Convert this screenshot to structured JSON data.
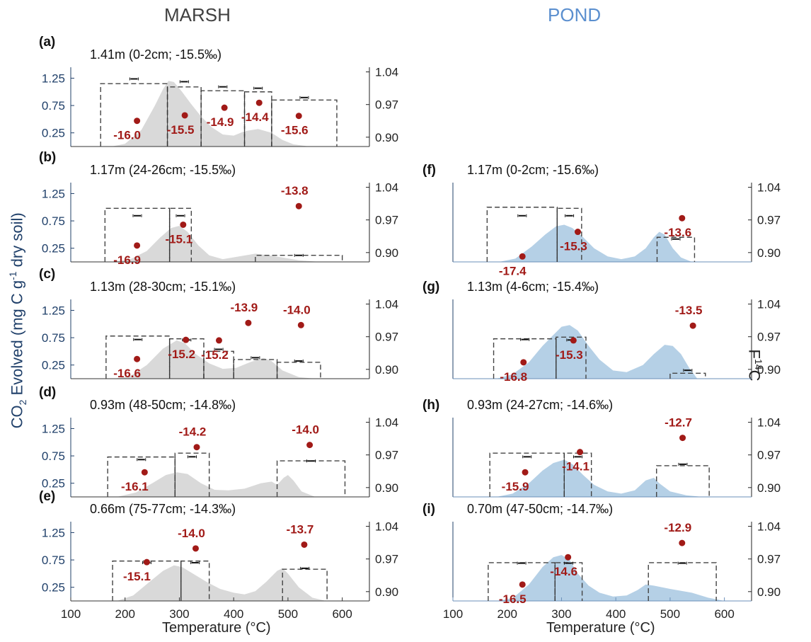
{
  "titles": {
    "marsh": "MARSH",
    "pond": "POND"
  },
  "axis": {
    "y_left_prefix": "CO",
    "y_left_sub": "2",
    "y_left_mid": " Evolved (mg C g",
    "y_left_sup": "-1",
    "y_left_suffix": " dry soil)",
    "y_right_base": "F",
    "y_right_sup": "14",
    "y_right_tail": "C",
    "xlabel": "Temperature (°C)"
  },
  "colors": {
    "marsh_fill": "#d9d9d9",
    "pond_fill": "#b5d0e6",
    "point": "#a11a17",
    "label": "#a11a17",
    "left_axis": "#20406a",
    "box": "#444444"
  },
  "chart_data": [
    {
      "type": "area",
      "panel": "(a)",
      "column": "marsh",
      "title": "1.41m (0-2cm; -15.5‰)",
      "xlim": [
        100,
        650
      ],
      "ylim_left": [
        0,
        1.45
      ],
      "ylim_right": [
        0.88,
        1.05
      ],
      "xticks": [
        100,
        200,
        300,
        400,
        500,
        600
      ],
      "yticks_left": [
        0.25,
        0.75,
        1.25
      ],
      "yticks_right": [
        0.9,
        0.97,
        1.04
      ],
      "profile": [
        [
          175,
          0
        ],
        [
          200,
          0.05
        ],
        [
          230,
          0.3
        ],
        [
          255,
          0.75
        ],
        [
          270,
          1.05
        ],
        [
          280,
          1.2
        ],
        [
          290,
          1.18
        ],
        [
          305,
          1.0
        ],
        [
          320,
          0.8
        ],
        [
          340,
          0.55
        ],
        [
          360,
          0.35
        ],
        [
          380,
          0.22
        ],
        [
          400,
          0.2
        ],
        [
          420,
          0.28
        ],
        [
          445,
          0.32
        ],
        [
          470,
          0.25
        ],
        [
          490,
          0.12
        ],
        [
          510,
          0.04
        ],
        [
          540,
          0
        ]
      ],
      "boxes": [
        [
          155,
          278,
          1.15
        ],
        [
          278,
          340,
          1.09
        ],
        [
          340,
          420,
          1.02
        ],
        [
          420,
          470,
          1.0
        ],
        [
          470,
          590,
          0.85
        ]
      ],
      "fractions": [
        1.025,
        1.019,
        1.008,
        1.005,
        0.985
      ],
      "points": [
        [
          222,
          0.47
        ],
        [
          310,
          0.57
        ],
        [
          383,
          0.71
        ],
        [
          447,
          0.8
        ],
        [
          520,
          0.56
        ]
      ],
      "labels": [
        "-16.0",
        "-15.5",
        "-14.9",
        "-14.4",
        "-15.6"
      ]
    },
    {
      "type": "area",
      "panel": "(b)",
      "column": "marsh",
      "title": "1.17m (24-26cm; -15.5‰)",
      "xlim": [
        100,
        650
      ],
      "ylim_left": [
        0,
        1.45
      ],
      "ylim_right": [
        0.88,
        1.05
      ],
      "xticks": [
        100,
        200,
        300,
        400,
        500,
        600
      ],
      "yticks_left": [
        0.25,
        0.75,
        1.25
      ],
      "yticks_right": [
        0.9,
        0.97,
        1.04
      ],
      "profile": [
        [
          175,
          0
        ],
        [
          210,
          0.05
        ],
        [
          240,
          0.2
        ],
        [
          265,
          0.45
        ],
        [
          285,
          0.62
        ],
        [
          300,
          0.66
        ],
        [
          315,
          0.55
        ],
        [
          335,
          0.3
        ],
        [
          355,
          0.12
        ],
        [
          380,
          0.05
        ],
        [
          410,
          0.1
        ],
        [
          440,
          0.15
        ],
        [
          465,
          0.12
        ],
        [
          490,
          0.08
        ],
        [
          520,
          0.03
        ],
        [
          560,
          0
        ]
      ],
      "boxes": [
        [
          163,
          282,
          0.98
        ],
        [
          282,
          322,
          0.98
        ],
        [
          440,
          600,
          0.12
        ]
      ],
      "fractions": [
        0.979,
        0.979,
        0.894
      ],
      "points": [
        [
          222,
          0.3
        ],
        [
          307,
          0.68
        ],
        [
          520,
          1.02
        ]
      ],
      "labels": [
        "-16.9",
        "-15.1",
        "-13.8"
      ]
    },
    {
      "type": "area",
      "panel": "(c)",
      "column": "marsh",
      "title": "1.13m (28-30cm; -15.1‰)",
      "xlim": [
        100,
        650
      ],
      "ylim_left": [
        0,
        1.45
      ],
      "ylim_right": [
        0.88,
        1.05
      ],
      "xticks": [
        100,
        200,
        300,
        400,
        500,
        600
      ],
      "yticks_left": [
        0.25,
        0.75,
        1.25
      ],
      "yticks_right": [
        0.9,
        0.97,
        1.04
      ],
      "profile": [
        [
          180,
          0
        ],
        [
          210,
          0.05
        ],
        [
          240,
          0.25
        ],
        [
          270,
          0.55
        ],
        [
          295,
          0.7
        ],
        [
          310,
          0.65
        ],
        [
          330,
          0.45
        ],
        [
          355,
          0.28
        ],
        [
          380,
          0.18
        ],
        [
          405,
          0.2
        ],
        [
          430,
          0.3
        ],
        [
          455,
          0.38
        ],
        [
          470,
          0.32
        ],
        [
          490,
          0.15
        ],
        [
          520,
          0.03
        ],
        [
          550,
          0
        ]
      ],
      "boxes": [
        [
          165,
          282,
          0.78
        ],
        [
          282,
          345,
          0.73
        ],
        [
          345,
          400,
          0.5
        ],
        [
          400,
          480,
          0.35
        ],
        [
          480,
          560,
          0.3
        ]
      ],
      "fractions": [
        0.964,
        0.963,
        0.943,
        0.925,
        0.918
      ],
      "points": [
        [
          222,
          0.36
        ],
        [
          312,
          0.71
        ],
        [
          373,
          0.7
        ],
        [
          427,
          1.02
        ],
        [
          524,
          0.98
        ]
      ],
      "labels": [
        "-16.6",
        "-15.2",
        "-15.2",
        "-13.9",
        "-14.0"
      ]
    },
    {
      "type": "area",
      "panel": "(d)",
      "column": "marsh",
      "title": "0.93m (48-50cm; -14.8‰)",
      "xlim": [
        100,
        650
      ],
      "ylim_left": [
        0,
        1.45
      ],
      "ylim_right": [
        0.88,
        1.05
      ],
      "xticks": [
        100,
        200,
        300,
        400,
        500,
        600
      ],
      "yticks_left": [
        0.25,
        0.75,
        1.25
      ],
      "yticks_right": [
        0.9,
        0.97,
        1.04
      ],
      "profile": [
        [
          185,
          0
        ],
        [
          220,
          0.08
        ],
        [
          250,
          0.25
        ],
        [
          275,
          0.4
        ],
        [
          295,
          0.45
        ],
        [
          315,
          0.42
        ],
        [
          340,
          0.25
        ],
        [
          365,
          0.13
        ],
        [
          390,
          0.12
        ],
        [
          420,
          0.15
        ],
        [
          450,
          0.25
        ],
        [
          470,
          0.28
        ],
        [
          480,
          0.22
        ],
        [
          492,
          0.35
        ],
        [
          500,
          0.4
        ],
        [
          510,
          0.3
        ],
        [
          525,
          0.1
        ],
        [
          550,
          0
        ]
      ],
      "boxes": [
        [
          168,
          292,
          0.73
        ],
        [
          292,
          355,
          0.8
        ],
        [
          480,
          605,
          0.66
        ]
      ],
      "fractions": [
        0.96,
        0.966,
        0.957
      ],
      "points": [
        [
          236,
          0.45
        ],
        [
          332,
          0.91
        ],
        [
          540,
          0.95
        ]
      ],
      "labels": [
        "-16.1",
        "-14.2",
        "-14.0"
      ]
    },
    {
      "type": "area",
      "panel": "(e)",
      "column": "marsh",
      "title": "0.66m (75-77cm; -14.3‰)",
      "xlim": [
        100,
        650
      ],
      "ylim_left": [
        0,
        1.45
      ],
      "ylim_right": [
        0.88,
        1.05
      ],
      "xticks": [
        100,
        200,
        300,
        400,
        500,
        600
      ],
      "yticks_left": [
        0.25,
        0.75,
        1.25
      ],
      "yticks_right": [
        0.9,
        0.97,
        1.04
      ],
      "profile": [
        [
          185,
          0
        ],
        [
          215,
          0.1
        ],
        [
          245,
          0.35
        ],
        [
          270,
          0.55
        ],
        [
          290,
          0.65
        ],
        [
          305,
          0.62
        ],
        [
          325,
          0.5
        ],
        [
          350,
          0.35
        ],
        [
          375,
          0.22
        ],
        [
          400,
          0.15
        ],
        [
          420,
          0.12
        ],
        [
          440,
          0.18
        ],
        [
          460,
          0.35
        ],
        [
          480,
          0.55
        ],
        [
          490,
          0.6
        ],
        [
          500,
          0.5
        ],
        [
          520,
          0.25
        ],
        [
          545,
          0.06
        ],
        [
          570,
          0
        ]
      ],
      "boxes": [
        [
          177,
          303,
          0.73
        ],
        [
          303,
          355,
          0.73
        ],
        [
          490,
          572,
          0.58
        ]
      ],
      "fractions": [
        0.962,
        0.962,
        0.95
      ],
      "points": [
        [
          240,
          0.71
        ],
        [
          330,
          0.96
        ],
        [
          530,
          1.03
        ]
      ],
      "labels": [
        "-15.1",
        "-14.0",
        "-13.7"
      ]
    },
    {
      "type": "area",
      "panel": "(f)",
      "column": "pond",
      "title": "1.17m (0-2cm; -15.6‰)",
      "xlim": [
        100,
        650
      ],
      "ylim_left": [
        0,
        1.45
      ],
      "ylim_right": [
        0.88,
        1.05
      ],
      "xticks": [
        100,
        200,
        300,
        400,
        500,
        600
      ],
      "yticks_left": [],
      "yticks_right": [
        0.9,
        0.97,
        1.04
      ],
      "profile": [
        [
          185,
          0
        ],
        [
          215,
          0.06
        ],
        [
          245,
          0.28
        ],
        [
          270,
          0.5
        ],
        [
          290,
          0.65
        ],
        [
          305,
          0.68
        ],
        [
          320,
          0.62
        ],
        [
          340,
          0.45
        ],
        [
          360,
          0.25
        ],
        [
          385,
          0.1
        ],
        [
          410,
          0.05
        ],
        [
          435,
          0.1
        ],
        [
          455,
          0.25
        ],
        [
          470,
          0.45
        ],
        [
          480,
          0.55
        ],
        [
          490,
          0.5
        ],
        [
          505,
          0.25
        ],
        [
          520,
          0.08
        ],
        [
          540,
          0
        ]
      ],
      "boxes": [
        [
          163,
          292,
          1.0
        ],
        [
          292,
          337,
          0.98
        ],
        [
          476,
          545,
          0.45
        ]
      ],
      "fractions": [
        0.979,
        0.979,
        0.929
      ],
      "points": [
        [
          228,
          0.1
        ],
        [
          330,
          0.55
        ],
        [
          522,
          0.8
        ]
      ],
      "labels": [
        "-17.4",
        "-15.3",
        "-13.6"
      ]
    },
    {
      "type": "area",
      "panel": "(g)",
      "column": "pond",
      "title": "1.13m (4-6cm; -15.4‰)",
      "xlim": [
        100,
        650
      ],
      "ylim_left": [
        0,
        1.45
      ],
      "ylim_right": [
        0.88,
        1.05
      ],
      "xticks": [
        100,
        200,
        300,
        400,
        500,
        600
      ],
      "yticks_left": [],
      "yticks_right": [
        0.9,
        0.97,
        1.04
      ],
      "profile": [
        [
          180,
          0
        ],
        [
          210,
          0.08
        ],
        [
          240,
          0.3
        ],
        [
          265,
          0.6
        ],
        [
          285,
          0.8
        ],
        [
          300,
          0.95
        ],
        [
          315,
          0.98
        ],
        [
          330,
          0.88
        ],
        [
          350,
          0.6
        ],
        [
          370,
          0.35
        ],
        [
          395,
          0.15
        ],
        [
          420,
          0.12
        ],
        [
          450,
          0.25
        ],
        [
          470,
          0.45
        ],
        [
          490,
          0.62
        ],
        [
          505,
          0.6
        ],
        [
          520,
          0.45
        ],
        [
          535,
          0.2
        ],
        [
          550,
          0
        ]
      ],
      "boxes": [
        [
          175,
          290,
          0.73
        ],
        [
          290,
          345,
          0.76
        ],
        [
          500,
          565,
          0.1
        ]
      ],
      "fractions": [
        0.964,
        0.963,
        0.898
      ],
      "points": [
        [
          230,
          0.3
        ],
        [
          322,
          0.7
        ],
        [
          542,
          0.97
        ]
      ],
      "labels": [
        "-16.8",
        "-15.3",
        "-13.5"
      ]
    },
    {
      "type": "area",
      "panel": "(h)",
      "column": "pond",
      "title": "0.93m (24-27cm; -14.6‰)",
      "xlim": [
        100,
        650
      ],
      "ylim_left": [
        0,
        1.45
      ],
      "ylim_right": [
        0.88,
        1.05
      ],
      "xticks": [
        100,
        200,
        300,
        400,
        500,
        600
      ],
      "yticks_left": [],
      "yticks_right": [
        0.9,
        0.97,
        1.04
      ],
      "profile": [
        [
          180,
          0
        ],
        [
          210,
          0.06
        ],
        [
          240,
          0.25
        ],
        [
          265,
          0.48
        ],
        [
          285,
          0.62
        ],
        [
          305,
          0.68
        ],
        [
          320,
          0.6
        ],
        [
          340,
          0.4
        ],
        [
          360,
          0.22
        ],
        [
          385,
          0.1
        ],
        [
          410,
          0.06
        ],
        [
          435,
          0.12
        ],
        [
          455,
          0.3
        ],
        [
          470,
          0.35
        ],
        [
          480,
          0.25
        ],
        [
          500,
          0.1
        ],
        [
          530,
          0.03
        ],
        [
          560,
          0
        ]
      ],
      "boxes": [
        [
          168,
          305,
          0.8
        ],
        [
          305,
          355,
          0.8
        ],
        [
          475,
          572,
          0.57
        ]
      ],
      "fractions": [
        0.966,
        0.966,
        0.95
      ],
      "points": [
        [
          233,
          0.45
        ],
        [
          334,
          0.82
        ],
        [
          523,
          1.08
        ]
      ],
      "labels": [
        "-15.9",
        "-14.1",
        "-12.7"
      ]
    },
    {
      "type": "area",
      "panel": "(i)",
      "column": "pond",
      "title": "0.70m (47-50cm; -14.7‰)",
      "xlim": [
        100,
        650
      ],
      "ylim_left": [
        0,
        1.45
      ],
      "ylim_right": [
        0.88,
        1.05
      ],
      "xticks": [
        100,
        200,
        300,
        400,
        500,
        600
      ],
      "yticks_left": [],
      "yticks_right": [
        0.9,
        0.97,
        1.04
      ],
      "profile": [
        [
          180,
          0
        ],
        [
          210,
          0.05
        ],
        [
          240,
          0.3
        ],
        [
          265,
          0.62
        ],
        [
          285,
          0.8
        ],
        [
          300,
          0.84
        ],
        [
          315,
          0.75
        ],
        [
          330,
          0.5
        ],
        [
          350,
          0.28
        ],
        [
          370,
          0.15
        ],
        [
          395,
          0.08
        ],
        [
          420,
          0.1
        ],
        [
          440,
          0.2
        ],
        [
          455,
          0.3
        ],
        [
          470,
          0.28
        ],
        [
          500,
          0.22
        ],
        [
          540,
          0.15
        ],
        [
          570,
          0.06
        ],
        [
          600,
          0
        ]
      ],
      "boxes": [
        [
          165,
          288,
          0.7
        ],
        [
          288,
          338,
          0.7
        ],
        [
          460,
          585,
          0.7
        ]
      ],
      "fractions": [
        0.961,
        0.961,
        0.961
      ],
      "points": [
        [
          228,
          0.3
        ],
        [
          312,
          0.8
        ],
        [
          522,
          1.06
        ]
      ],
      "labels": [
        "-16.5",
        "-14.6",
        "-12.9"
      ]
    }
  ]
}
